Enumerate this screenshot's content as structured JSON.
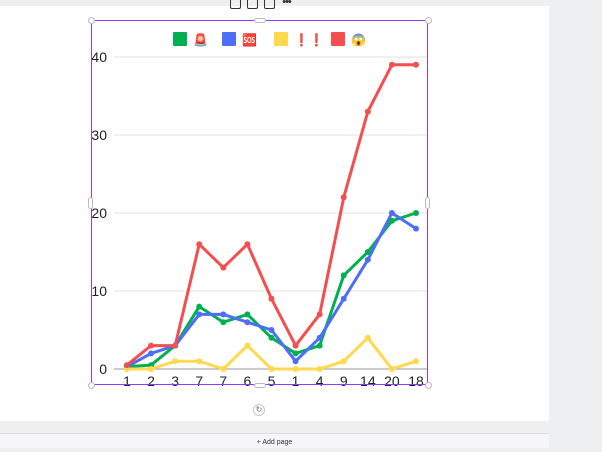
{
  "toolbar": {
    "items": [
      {
        "icon": "share-icon"
      },
      {
        "icon": "duplicate-icon"
      },
      {
        "icon": "delete-icon"
      },
      {
        "icon": "more-icon",
        "label": "•••"
      }
    ]
  },
  "rotate_label": "↻",
  "add_page_label": "+ Add page",
  "chart_data": {
    "type": "line",
    "categories": [
      "1",
      "2",
      "3",
      "7",
      "7",
      "6",
      "5",
      "1",
      "4",
      "9",
      "14",
      "20",
      "18"
    ],
    "y_ticks": [
      0,
      10,
      20,
      30,
      40
    ],
    "ylim": [
      0,
      40
    ],
    "grid": true,
    "legend_placement": "top",
    "series": [
      {
        "name": "🚨",
        "color": "#00b050",
        "values": [
          0.3,
          0.5,
          3,
          8,
          6,
          7,
          4,
          2,
          3,
          12,
          15,
          19,
          20
        ]
      },
      {
        "name": "🆘",
        "color": "#4f6ef7",
        "values": [
          0.3,
          2,
          3,
          7,
          7,
          6,
          5,
          1,
          4,
          9,
          14,
          20,
          18
        ]
      },
      {
        "name": "❗❗",
        "color": "#ffd84d",
        "values": [
          0,
          0,
          1,
          1,
          0,
          3,
          0,
          0,
          0,
          1,
          4,
          0,
          1
        ]
      },
      {
        "name": "😱",
        "color": "#f44e4e",
        "values": [
          0.5,
          3,
          3,
          16,
          13,
          16,
          9,
          3,
          7,
          22,
          33,
          39,
          39
        ]
      }
    ]
  }
}
